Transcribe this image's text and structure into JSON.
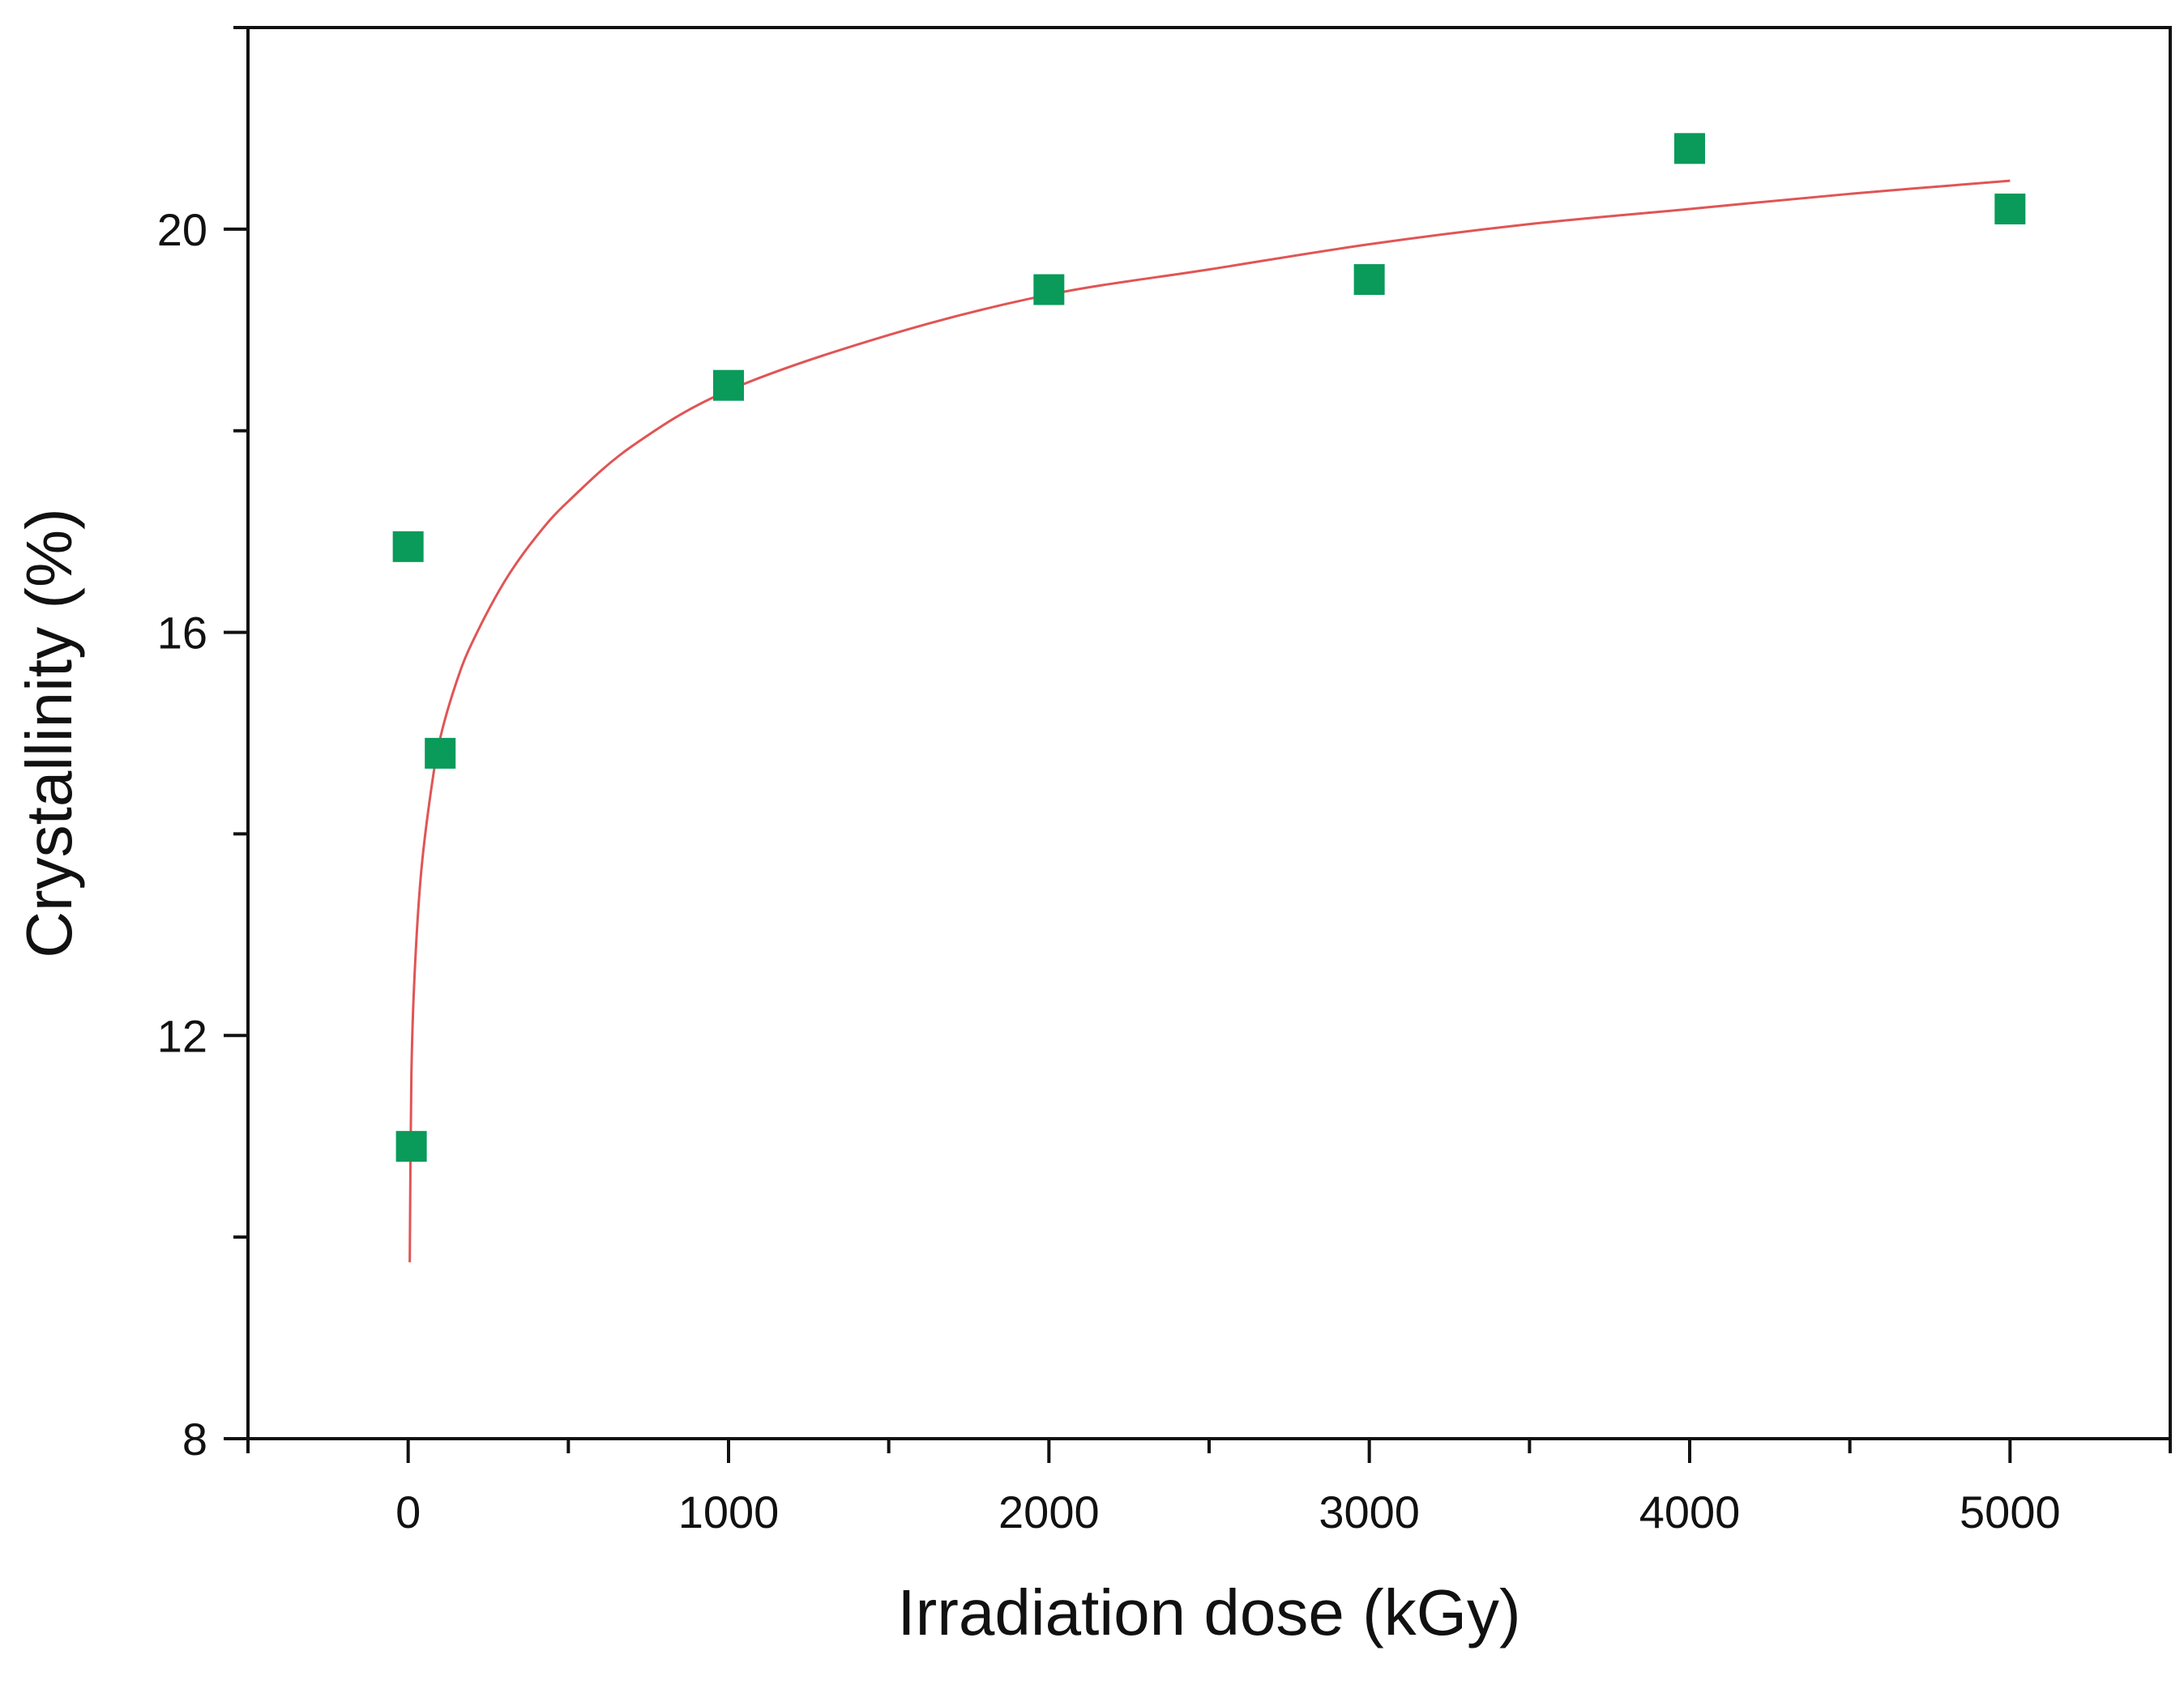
{
  "chart_data": {
    "type": "scatter",
    "title": "",
    "xlabel": "Irradiation dose (kGy)",
    "ylabel": "Crystallinity (%)",
    "xlim": [
      -500,
      5500
    ],
    "ylim": [
      8,
      22
    ],
    "xticks": [
      0,
      1000,
      2000,
      3000,
      4000,
      5000
    ],
    "xtick_labels": [
      "0",
      "1000",
      "2000",
      "3000",
      "4000",
      "5000"
    ],
    "yticks": [
      8,
      12,
      16,
      20
    ],
    "ytick_labels": [
      "8",
      "12",
      "16",
      "20"
    ],
    "grid": false,
    "legend": "none",
    "series": [
      {
        "kind": "points",
        "marker": "square",
        "color": "#0a9a5a",
        "points": [
          {
            "x": 0,
            "y": 16.85
          },
          {
            "x": 10,
            "y": 10.9
          },
          {
            "x": 100,
            "y": 14.8
          },
          {
            "x": 1000,
            "y": 18.45
          },
          {
            "x": 2000,
            "y": 19.4
          },
          {
            "x": 3000,
            "y": 19.5
          },
          {
            "x": 4000,
            "y": 20.8
          },
          {
            "x": 5000,
            "y": 20.2
          }
        ]
      },
      {
        "kind": "fit-curve",
        "color": "#e05555",
        "points": [
          {
            "x": 5,
            "y": 9.75
          },
          {
            "x": 10,
            "y": 11.6
          },
          {
            "x": 20,
            "y": 12.6
          },
          {
            "x": 40,
            "y": 13.6
          },
          {
            "x": 70,
            "y": 14.4
          },
          {
            "x": 100,
            "y": 14.95
          },
          {
            "x": 150,
            "y": 15.5
          },
          {
            "x": 200,
            "y": 15.9
          },
          {
            "x": 300,
            "y": 16.5
          },
          {
            "x": 400,
            "y": 16.95
          },
          {
            "x": 500,
            "y": 17.3
          },
          {
            "x": 700,
            "y": 17.85
          },
          {
            "x": 1000,
            "y": 18.4
          },
          {
            "x": 1500,
            "y": 18.95
          },
          {
            "x": 2000,
            "y": 19.35
          },
          {
            "x": 2500,
            "y": 19.6
          },
          {
            "x": 3000,
            "y": 19.85
          },
          {
            "x": 3500,
            "y": 20.05
          },
          {
            "x": 4000,
            "y": 20.2
          },
          {
            "x": 4500,
            "y": 20.35
          },
          {
            "x": 5000,
            "y": 20.48
          }
        ]
      }
    ]
  }
}
